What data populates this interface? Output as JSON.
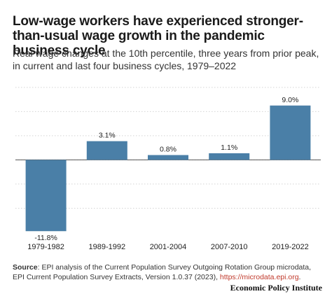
{
  "title": "Low-wage workers have experienced stronger-than-usual wage growth in the pandemic business cycle",
  "subtitle": "Real wage changes at the 10th percentile, three years from prior peak, in current and last four business cycles, 1979–2022",
  "chart_data": {
    "type": "bar",
    "categories": [
      "1979-1982",
      "1989-1992",
      "2001-2004",
      "2007-2010",
      "2019-2022"
    ],
    "values": [
      -11.8,
      3.1,
      0.8,
      1.1,
      9.0
    ],
    "value_labels": [
      "-11.8%",
      "3.1%",
      "0.8%",
      "1.1%",
      "9.0%"
    ],
    "title": "",
    "xlabel": "",
    "ylabel": "",
    "ylim": [
      -12.7,
      12.1
    ],
    "grid": true,
    "bar_color": "#4a7fa7"
  },
  "source": {
    "label": "Source",
    "text": ": EPI analysis of the Current Population Survey Outgoing Rotation Group microdata, EPI Current Population Survey Extracts, Version 1.0.37 (2023), ",
    "link": "https://microdata.epi.org",
    "end": "."
  },
  "brand": "Economic Policy Institute"
}
